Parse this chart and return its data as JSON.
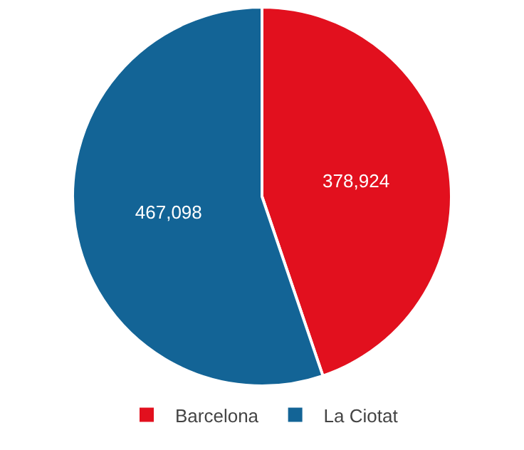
{
  "chart_data": {
    "type": "pie",
    "categories": [
      "Barcelona",
      "La Ciotat"
    ],
    "values": [
      378924,
      467098
    ],
    "colors": [
      "#e2101e",
      "#136496"
    ],
    "value_labels": [
      "378,924",
      "467,098"
    ],
    "legend": "bottom"
  }
}
